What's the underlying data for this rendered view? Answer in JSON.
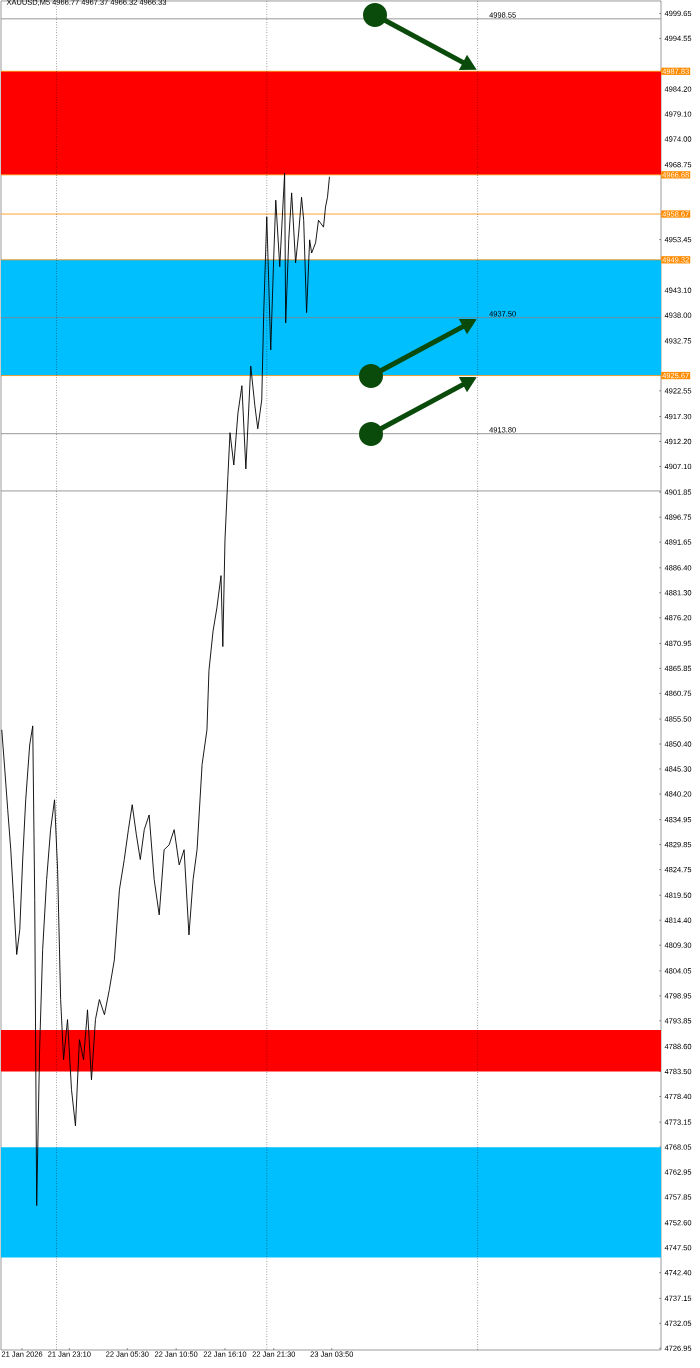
{
  "chart_data": {
    "type": "line",
    "title": "XAUUSD,M5  4966.77 4967.37 4966.32 4966.33",
    "x": [
      "2026-01-21T15:47",
      "2026-01-21T16:07",
      "2026-01-21T16:26",
      "2026-01-21T16:46",
      "2026-01-21T17:05",
      "2026-01-21T17:25",
      "2026-01-21T17:45",
      "2026-01-21T18:04",
      "2026-01-21T18:24",
      "2026-01-21T18:50",
      "2026-01-21T19:10",
      "2026-01-21T19:23",
      "2026-01-21T19:36",
      "2026-01-21T19:55",
      "2026-01-21T20:15",
      "2026-01-21T20:41",
      "2026-01-21T21:07",
      "2026-01-21T21:33",
      "2026-01-21T21:53",
      "2026-01-21T22:13",
      "2026-01-21T22:32",
      "2026-01-21T22:58",
      "2026-01-21T23:24",
      "2026-01-21T23:50",
      "2026-01-22T00:16",
      "2026-01-22T00:43",
      "2026-01-22T01:09",
      "2026-01-22T01:35",
      "2026-01-22T02:01",
      "2026-01-22T02:27",
      "2026-01-22T03:00",
      "2026-01-22T03:32",
      "2026-01-22T04:05",
      "2026-01-22T04:38",
      "2026-01-22T05:10",
      "2026-01-22T05:37",
      "2026-01-22T06:02",
      "2026-01-22T06:29",
      "2026-01-22T06:55",
      "2026-01-22T07:21",
      "2026-01-22T07:53",
      "2026-01-22T08:26",
      "2026-01-22T08:59",
      "2026-01-22T09:31",
      "2026-01-22T10:04",
      "2026-01-22T10:37",
      "2026-01-22T11:10",
      "2026-01-22T11:42",
      "2026-01-22T12:14",
      "2026-01-22T12:41",
      "2026-01-22T13:07",
      "2026-01-22T13:40",
      "2026-01-22T14:12",
      "2026-01-22T14:25",
      "2026-01-22T14:52",
      "2026-01-22T15:17",
      "2026-01-22T15:44",
      "2026-01-22T15:56",
      "2026-01-22T16:10",
      "2026-01-22T16:29",
      "2026-01-22T16:43",
      "2026-01-22T17:08",
      "2026-01-22T17:35",
      "2026-01-22T18:01",
      "2026-01-22T18:27",
      "2026-01-22T18:59",
      "2026-01-22T19:26",
      "2026-01-22T19:45",
      "2026-01-22T20:11",
      "2026-01-22T20:24",
      "2026-01-22T20:44",
      "2026-01-22T21:10",
      "2026-01-22T21:29",
      "2026-01-22T21:43",
      "2026-01-22T22:09",
      "2026-01-22T22:41",
      "2026-01-22T22:48",
      "2026-01-22T23:08",
      "2026-01-22T23:27",
      "2026-01-22T23:53",
      "2026-01-23T00:13",
      "2026-01-23T00:32",
      "2026-01-23T00:46",
      "2026-01-23T01:05",
      "2026-01-23T01:25",
      "2026-01-23T01:38",
      "2026-01-23T02:04",
      "2026-01-23T02:23",
      "2026-01-23T02:56",
      "2026-01-23T03:09",
      "2026-01-23T03:22",
      "2026-01-23T03:35"
    ],
    "series": [
      {
        "color": "#000000",
        "values": [
          4853.3,
          4845.1,
          4837.0,
          4828.8,
          4818.6,
          4807.4,
          4812.5,
          4826.7,
          4839.0,
          4850.2,
          4854.1,
          4818.6,
          4756.1,
          4788.0,
          4808.4,
          4822.7,
          4832.9,
          4839.0,
          4824.7,
          4798.2,
          4785.9,
          4794.1,
          4779.8,
          4772.4,
          4790.0,
          4785.9,
          4796.1,
          4781.8,
          4794.1,
          4798.2,
          4795.1,
          4800.2,
          4806.3,
          4820.6,
          4826.8,
          4832.9,
          4838.0,
          4831.9,
          4826.8,
          4832.9,
          4835.9,
          4822.7,
          4815.5,
          4828.8,
          4829.8,
          4832.9,
          4825.7,
          4828.8,
          4811.4,
          4822.7,
          4828.8,
          4846.2,
          4853.3,
          4865.4,
          4873.5,
          4878.2,
          4884.8,
          4870.3,
          4892.1,
          4905.0,
          4914.0,
          4907.4,
          4918.0,
          4923.6,
          4906.6,
          4927.6,
          4919.5,
          4914.8,
          4920.7,
          4938.5,
          4958.1,
          4930.9,
          4949.3,
          4961.5,
          4947.9,
          4967.0,
          4936.4,
          4953.4,
          4963.0,
          4948.7,
          4954.8,
          4962.1,
          4957.4,
          4938.5,
          4953.4,
          4950.7,
          4952.8,
          4957.4,
          4956.0,
          4960.1,
          4962.1,
          4966.3
        ]
      }
    ],
    "xlim": [
      "2026-01-21T15:42",
      "2026-01-24T15:48"
    ],
    "ylim": [
      4726.6,
      5002.2
    ],
    "xticks": [
      {
        "value": "2026-01-21T18:00",
        "label": "21 Jan 2026"
      },
      {
        "value": "2026-01-21T23:10",
        "label": "21 Jan 23:10"
      },
      {
        "value": "2026-01-22T05:30",
        "label": "22 Jan 05:30"
      },
      {
        "value": "2026-01-22T10:50",
        "label": "22 Jan 10:50"
      },
      {
        "value": "2026-01-22T16:10",
        "label": "22 Jan 16:10"
      },
      {
        "value": "2026-01-22T21:30",
        "label": "22 Jan 21:30"
      },
      {
        "value": "2026-01-23T03:50",
        "label": "23 Jan 03:50"
      }
    ],
    "yticks": [
      {
        "value": 4999.65,
        "label": "4999.65"
      },
      {
        "value": 4994.55,
        "label": "4994.55"
      },
      {
        "value": 4984.2,
        "label": "4984.20"
      },
      {
        "value": 4979.1,
        "label": "4979.10"
      },
      {
        "value": 4974.0,
        "label": "4974.00"
      },
      {
        "value": 4968.75,
        "label": "4968.75"
      },
      {
        "value": 4953.45,
        "label": "4953.45"
      },
      {
        "value": 4943.1,
        "label": "4943.10"
      },
      {
        "value": 4938.0,
        "label": "4938.00"
      },
      {
        "value": 4932.75,
        "label": "4932.75"
      },
      {
        "value": 4922.55,
        "label": "4922.55"
      },
      {
        "value": 4917.3,
        "label": "4917.30"
      },
      {
        "value": 4912.2,
        "label": "4912.20"
      },
      {
        "value": 4907.1,
        "label": "4907.10"
      },
      {
        "value": 4901.85,
        "label": "4901.85"
      },
      {
        "value": 4896.75,
        "label": "4896.75"
      },
      {
        "value": 4891.65,
        "label": "4891.65"
      },
      {
        "value": 4886.4,
        "label": "4886.40"
      },
      {
        "value": 4881.3,
        "label": "4881.30"
      },
      {
        "value": 4876.2,
        "label": "4876.20"
      },
      {
        "value": 4870.95,
        "label": "4870.95"
      },
      {
        "value": 4865.85,
        "label": "4865.85"
      },
      {
        "value": 4860.75,
        "label": "4860.75"
      },
      {
        "value": 4855.5,
        "label": "4855.50"
      },
      {
        "value": 4850.4,
        "label": "4850.40"
      },
      {
        "value": 4845.3,
        "label": "4845.30"
      },
      {
        "value": 4840.2,
        "label": "4840.20"
      },
      {
        "value": 4834.95,
        "label": "4834.95"
      },
      {
        "value": 4829.85,
        "label": "4829.85"
      },
      {
        "value": 4824.75,
        "label": "4824.75"
      },
      {
        "value": 4819.5,
        "label": "4819.50"
      },
      {
        "value": 4814.4,
        "label": "4814.40"
      },
      {
        "value": 4809.3,
        "label": "4809.30"
      },
      {
        "value": 4804.05,
        "label": "4804.05"
      },
      {
        "value": 4798.95,
        "label": "4798.95"
      },
      {
        "value": 4793.85,
        "label": "4793.85"
      },
      {
        "value": 4788.6,
        "label": "4788.60"
      },
      {
        "value": 4783.5,
        "label": "4783.50"
      },
      {
        "value": 4778.4,
        "label": "4778.40"
      },
      {
        "value": 4773.15,
        "label": "4773.15"
      },
      {
        "value": 4768.05,
        "label": "4768.05"
      },
      {
        "value": 4762.95,
        "label": "4762.95"
      },
      {
        "value": 4757.85,
        "label": "4757.85"
      },
      {
        "value": 4752.6,
        "label": "4752.60"
      },
      {
        "value": 4747.5,
        "label": "4747.50"
      },
      {
        "value": 4742.4,
        "label": "4742.40"
      },
      {
        "value": 4737.15,
        "label": "4737.15"
      },
      {
        "value": 4732.05,
        "label": "4732.05"
      },
      {
        "value": 4726.95,
        "label": "4726.95"
      }
    ],
    "bands": [
      {
        "axis": "y",
        "from": 4966.68,
        "to": 4987.83,
        "color": "#ff0000"
      },
      {
        "axis": "y",
        "from": 4925.67,
        "to": 4949.32,
        "color": "#00bfff"
      },
      {
        "axis": "y",
        "from": 4783.5,
        "to": 4792.0,
        "color": "#ff0000"
      },
      {
        "axis": "y",
        "from": 4745.5,
        "to": 4768.0,
        "color": "#00bfff"
      }
    ],
    "ref_lines": [
      {
        "axis": "y",
        "value": 4987.83,
        "label": "4987.83",
        "color": "#ff8c00"
      },
      {
        "axis": "y",
        "value": 4966.68,
        "label": "4966.68",
        "color": "#ff8c00"
      },
      {
        "axis": "y",
        "value": 4958.67,
        "label": "4958.67",
        "color": "#ff8c00"
      },
      {
        "axis": "y",
        "value": 4949.32,
        "label": "4949.32",
        "color": "#ff8c00"
      },
      {
        "axis": "y",
        "value": 4925.67,
        "label": "4925.67",
        "color": "#ff8c00"
      },
      {
        "axis": "y",
        "value": 4998.55,
        "color": "#808080"
      },
      {
        "axis": "y",
        "value": 4937.5,
        "color": "#808080"
      },
      {
        "axis": "y",
        "value": 4913.8,
        "color": "#808080"
      },
      {
        "axis": "y",
        "value": 4902.1,
        "color": "#808080"
      },
      {
        "axis": "x",
        "value": "2026-01-21T21:46",
        "color": "#000000",
        "line_style": "dotted"
      },
      {
        "axis": "x",
        "value": "2026-01-22T20:44",
        "color": "#000000",
        "line_style": "dotted"
      },
      {
        "axis": "x",
        "value": "2026-01-23T19:46",
        "color": "#000000",
        "line_style": "dotted"
      }
    ],
    "annotations": [
      {
        "text": "4998.55",
        "x": "2026-01-23T22:30",
        "y": 4998.55
      },
      {
        "text": "4937.50",
        "x": "2026-01-23T22:30",
        "y": 4937.5
      },
      {
        "text": "4913.80",
        "x": "2026-01-23T22:30",
        "y": 4913.8
      }
    ],
    "grid": false
  }
}
